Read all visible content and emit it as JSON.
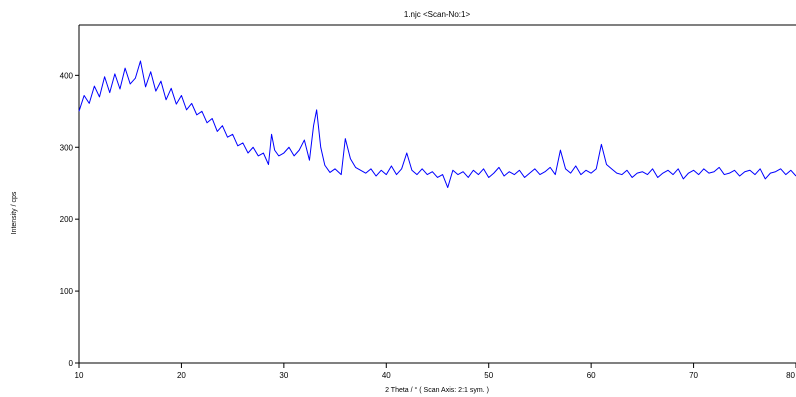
{
  "chart_data": {
    "type": "line",
    "title": "1.njc <Scan-No:1>",
    "xlabel": "2 Theta / °   ( Scan Axis: 2:1 sym. )",
    "ylabel": "Intensity / cps",
    "xlim": [
      10,
      80
    ],
    "ylim": [
      0,
      470
    ],
    "xticks": [
      10,
      20,
      30,
      40,
      50,
      60,
      70,
      80
    ],
    "yticks": [
      0,
      100,
      200,
      300,
      400
    ],
    "xtick_labels": [
      "10",
      "20",
      "30",
      "40",
      "50",
      "60",
      "70",
      "80"
    ],
    "ytick_labels": [
      "0",
      "100",
      "200",
      "300",
      "400"
    ],
    "grid": false,
    "legend": "none",
    "color": "#0000ff",
    "series": [
      {
        "x": [
          10.0,
          10.5,
          11.0,
          11.5,
          12.0,
          12.5,
          13.0,
          13.5,
          14.0,
          14.5,
          15.0,
          15.5,
          16.0,
          16.5,
          17.0,
          17.5,
          18.0,
          18.5,
          19.0,
          19.5,
          20.0,
          20.5,
          21.0,
          21.5,
          22.0,
          22.5,
          23.0,
          23.5,
          24.0,
          24.5,
          25.0,
          25.5,
          26.0,
          26.5,
          27.0,
          27.5,
          28.0,
          28.5,
          28.8,
          29.1,
          29.5,
          30.0,
          30.5,
          31.0,
          31.5,
          32.0,
          32.5,
          32.9,
          33.2,
          33.6,
          34.0,
          34.5,
          35.0,
          35.6,
          36.0,
          36.5,
          37.0,
          37.5,
          38.0,
          38.5,
          39.0,
          39.5,
          40.0,
          40.5,
          41.0,
          41.5,
          42.0,
          42.5,
          43.0,
          43.5,
          44.0,
          44.5,
          45.0,
          45.5,
          46.0,
          46.5,
          47.0,
          47.5,
          48.0,
          48.5,
          49.0,
          49.5,
          50.0,
          50.5,
          51.0,
          51.5,
          52.0,
          52.5,
          53.0,
          53.5,
          54.0,
          54.5,
          55.0,
          55.5,
          56.0,
          56.5,
          57.0,
          57.5,
          58.0,
          58.5,
          59.0,
          59.5,
          60.0,
          60.5,
          61.0,
          61.5,
          62.0,
          62.5,
          63.0,
          63.5,
          64.0,
          64.5,
          65.0,
          65.5,
          66.0,
          66.5,
          67.0,
          67.5,
          68.0,
          68.5,
          69.0,
          69.5,
          70.0,
          70.5,
          71.0,
          71.5,
          72.0,
          72.5,
          73.0,
          73.5,
          74.0,
          74.5,
          75.0,
          75.5,
          76.0,
          76.5,
          77.0,
          77.5,
          78.0,
          78.5,
          79.0,
          79.5,
          80.0
        ],
        "y": [
          350,
          372,
          361,
          385,
          370,
          398,
          376,
          402,
          381,
          410,
          388,
          396,
          420,
          384,
          405,
          378,
          392,
          366,
          382,
          360,
          372,
          352,
          361,
          345,
          350,
          334,
          340,
          322,
          330,
          314,
          318,
          302,
          306,
          292,
          300,
          288,
          292,
          276,
          318,
          296,
          288,
          292,
          300,
          288,
          296,
          310,
          282,
          330,
          352,
          300,
          275,
          265,
          270,
          262,
          312,
          284,
          272,
          268,
          264,
          270,
          260,
          268,
          262,
          274,
          262,
          270,
          292,
          268,
          262,
          270,
          262,
          266,
          258,
          262,
          244,
          268,
          262,
          266,
          258,
          268,
          262,
          270,
          258,
          264,
          272,
          260,
          266,
          262,
          268,
          258,
          264,
          270,
          262,
          266,
          272,
          262,
          296,
          270,
          264,
          274,
          262,
          268,
          264,
          270,
          304,
          276,
          270,
          264,
          262,
          268,
          258,
          264,
          266,
          262,
          270,
          258,
          264,
          268,
          262,
          270,
          256,
          264,
          268,
          262,
          270,
          264,
          266,
          272,
          262,
          264,
          268,
          260,
          266,
          268,
          262,
          270,
          256,
          264,
          266,
          270,
          262,
          268,
          260
        ]
      }
    ]
  }
}
